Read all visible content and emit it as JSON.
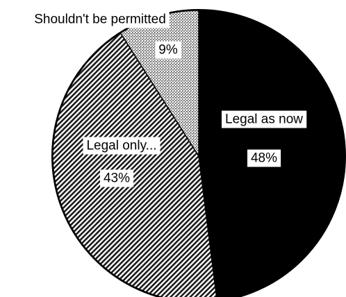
{
  "chart_data": {
    "type": "pie",
    "title": "",
    "slices": [
      {
        "label": "Legal as now",
        "value": 48,
        "value_label": "48%",
        "fill": "solid",
        "color": "#000000"
      },
      {
        "label": "Legal only...",
        "value": 43,
        "value_label": "43%",
        "fill": "diagonal-hatch",
        "color": "#1a1a1a"
      },
      {
        "label": "Shouldn't be permitted",
        "value": 9,
        "value_label": "9%",
        "fill": "stipple",
        "color": "#9a9a9a"
      }
    ],
    "start_direction": "top",
    "direction": "clockwise",
    "legend": "none"
  }
}
